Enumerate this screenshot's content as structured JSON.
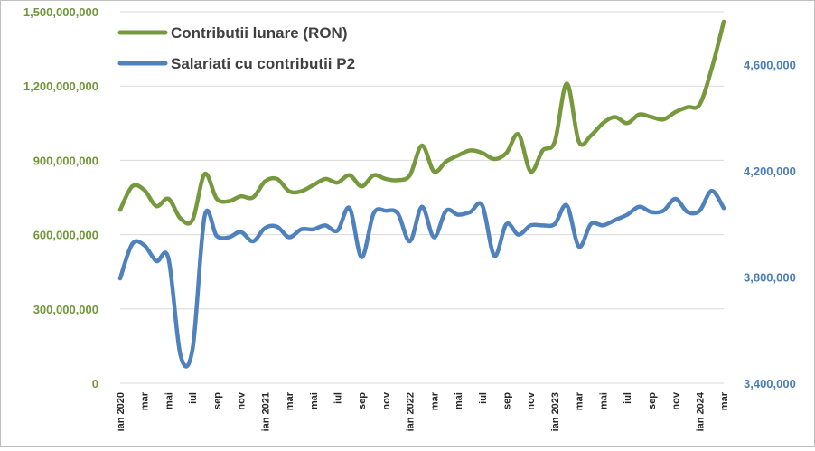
{
  "chart_data": {
    "type": "line",
    "title": "",
    "xlabel": "",
    "ylabel": "",
    "legend_placement": "top-left",
    "grid": true,
    "colors": {
      "contributii": "#77993d",
      "salariati": "#4f81bd"
    },
    "x_tick_labels": [
      "ian 2020",
      "mar",
      "mai",
      "iul",
      "sep",
      "nov",
      "ian 2021",
      "mar",
      "mai",
      "iul",
      "sep",
      "nov",
      "ian 2022",
      "mar",
      "mai",
      "iul",
      "sep",
      "nov",
      "ian 2023",
      "mar",
      "mai",
      "iul",
      "sep",
      "nov",
      "ian 2024",
      "mar"
    ],
    "months": [
      "2020-01",
      "2020-02",
      "2020-03",
      "2020-04",
      "2020-05",
      "2020-06",
      "2020-07",
      "2020-08",
      "2020-09",
      "2020-10",
      "2020-11",
      "2020-12",
      "2021-01",
      "2021-02",
      "2021-03",
      "2021-04",
      "2021-05",
      "2021-06",
      "2021-07",
      "2021-08",
      "2021-09",
      "2021-10",
      "2021-11",
      "2021-12",
      "2022-01",
      "2022-02",
      "2022-03",
      "2022-04",
      "2022-05",
      "2022-06",
      "2022-07",
      "2022-08",
      "2022-09",
      "2022-10",
      "2022-11",
      "2022-12",
      "2023-01",
      "2023-02",
      "2023-03",
      "2023-04",
      "2023-05",
      "2023-06",
      "2023-07",
      "2023-08",
      "2023-09",
      "2023-10",
      "2023-11",
      "2023-12",
      "2024-01",
      "2024-02",
      "2024-03"
    ],
    "y_left": {
      "min": 0,
      "max": 1500000000,
      "ticks": [
        "0",
        "300,000,000",
        "600,000,000",
        "900,000,000",
        "1,200,000,000",
        "1,500,000,000"
      ]
    },
    "y_right": {
      "min": 3400000,
      "max": 4800000,
      "ticks": [
        "3,400,000",
        "3,800,000",
        "4,200,000",
        "4,600,000"
      ]
    },
    "series": [
      {
        "name": "Contributii lunare (RON)",
        "axis": "left",
        "values": [
          700000000,
          795000000,
          780000000,
          715000000,
          745000000,
          665000000,
          660000000,
          845000000,
          745000000,
          735000000,
          755000000,
          750000000,
          815000000,
          825000000,
          775000000,
          775000000,
          800000000,
          825000000,
          810000000,
          840000000,
          795000000,
          840000000,
          825000000,
          820000000,
          840000000,
          960000000,
          855000000,
          895000000,
          920000000,
          940000000,
          930000000,
          905000000,
          930000000,
          1005000000,
          855000000,
          940000000,
          975000000,
          1210000000,
          975000000,
          1000000000,
          1050000000,
          1075000000,
          1050000000,
          1085000000,
          1075000000,
          1065000000,
          1095000000,
          1115000000,
          1125000000,
          1270000000,
          1460000000
        ]
      },
      {
        "name": "Salariati cu contributii P2",
        "axis": "right",
        "values": [
          3795000,
          3925000,
          3920000,
          3860000,
          3870000,
          3505000,
          3530000,
          4030000,
          3955000,
          3950000,
          3970000,
          3935000,
          3985000,
          3990000,
          3950000,
          3980000,
          3980000,
          3995000,
          3975000,
          4060000,
          3875000,
          4040000,
          4050000,
          4040000,
          3935000,
          4065000,
          3950000,
          4050000,
          4035000,
          4045000,
          4070000,
          3880000,
          4000000,
          3960000,
          3995000,
          3995000,
          4000000,
          4070000,
          3915000,
          4000000,
          3995000,
          4015000,
          4035000,
          4065000,
          4045000,
          4050000,
          4095000,
          4045000,
          4050000,
          4125000,
          4060000
        ]
      }
    ]
  }
}
